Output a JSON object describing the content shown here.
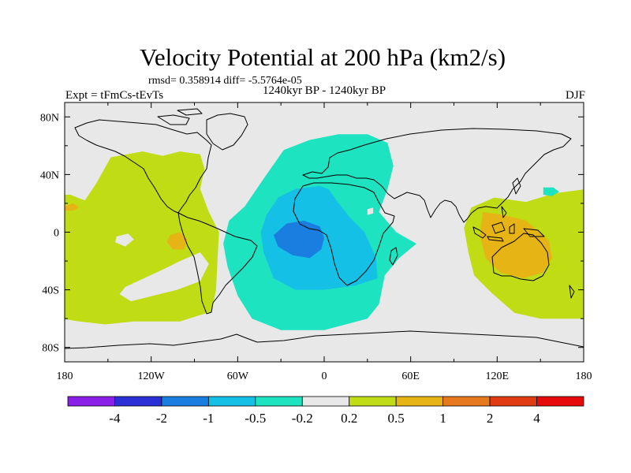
{
  "chart_data": {
    "type": "heatmap",
    "title": "Velocity Potential at 200 hPa (km2/s)",
    "stats_line": "rmsd= 0.358914 diff= -5.5764e-05",
    "period_line": "1240kyr BP - 1240kyr BP",
    "experiment": "Expt = tFmCs-tEvTs",
    "season": "DJF",
    "x_range": [
      -180,
      180
    ],
    "y_range": [
      -90,
      90
    ],
    "x_ticks": [
      {
        "value": -180,
        "label": "180"
      },
      {
        "value": -120,
        "label": "120W"
      },
      {
        "value": -60,
        "label": "60W"
      },
      {
        "value": 0,
        "label": "0"
      },
      {
        "value": 60,
        "label": "60E"
      },
      {
        "value": 120,
        "label": "120E"
      },
      {
        "value": 180,
        "label": "180"
      }
    ],
    "y_ticks": [
      {
        "value": 80,
        "label": "80N"
      },
      {
        "value": 40,
        "label": "40N"
      },
      {
        "value": 0,
        "label": "0"
      },
      {
        "value": -40,
        "label": "40S"
      },
      {
        "value": -80,
        "label": "80S"
      }
    ],
    "colorbar": {
      "labels": [
        "-4",
        "-2",
        "-1",
        "-0.5",
        "-0.2",
        "0.2",
        "0.5",
        "1",
        "2",
        "4"
      ],
      "colors": [
        "#8a1fe8",
        "#2a2fd6",
        "#1a7ee0",
        "#14c0e6",
        "#1ee3c0",
        "#e8e8e8",
        "#c0dc14",
        "#e6b414",
        "#e6781e",
        "#e03c14",
        "#e60a0a"
      ]
    },
    "regions": [
      {
        "name": "pacific-east-positive",
        "level_index": 6,
        "lonlat": [
          [
            -182,
            26
          ],
          [
            -176,
            26
          ],
          [
            -166,
            22
          ],
          [
            -158,
            34
          ],
          [
            -148,
            52
          ],
          [
            -126,
            56
          ],
          [
            -112,
            53
          ],
          [
            -100,
            56
          ],
          [
            -86,
            54
          ],
          [
            -83,
            44
          ],
          [
            -86,
            30
          ],
          [
            -80,
            14
          ],
          [
            -73,
            0
          ],
          [
            -74,
            -20
          ],
          [
            -75,
            -40
          ],
          [
            -78,
            -55
          ],
          [
            -100,
            -62
          ],
          [
            -132,
            -62
          ],
          [
            -152,
            -64
          ],
          [
            -170,
            -62
          ],
          [
            -182,
            -60
          ]
        ]
      },
      {
        "name": "pacific-east-zero-hole",
        "level_index": 5,
        "lonlat": [
          [
            -138,
            -38
          ],
          [
            -125,
            -32
          ],
          [
            -112,
            -26
          ],
          [
            -100,
            -20
          ],
          [
            -86,
            -14
          ],
          [
            -80,
            -22
          ],
          [
            -86,
            -34
          ],
          [
            -102,
            -40
          ],
          [
            -118,
            -44
          ],
          [
            -134,
            -48
          ],
          [
            -142,
            -43
          ]
        ]
      },
      {
        "name": "pacific-east-small-zero",
        "level_index": 5,
        "lonlat": [
          [
            -144,
            -3
          ],
          [
            -136,
            -1
          ],
          [
            -132,
            -5
          ],
          [
            -138,
            -10
          ],
          [
            -145,
            -7
          ]
        ]
      },
      {
        "name": "pacific-east-orange-blob",
        "level_index": 7,
        "lonlat": [
          [
            -107,
            -2
          ],
          [
            -100,
            0
          ],
          [
            -95,
            -5
          ],
          [
            -97,
            -12
          ],
          [
            -105,
            -12
          ],
          [
            -109,
            -7
          ]
        ]
      },
      {
        "name": "pacific-dateline-orange",
        "level_index": 7,
        "lonlat": [
          [
            -180,
            18
          ],
          [
            -174,
            20
          ],
          [
            -170,
            17
          ],
          [
            -174,
            15
          ],
          [
            -180,
            15
          ]
        ]
      },
      {
        "name": "atlantic-outer-negative",
        "level_index": 4,
        "lonlat": [
          [
            -55,
            18
          ],
          [
            -40,
            40
          ],
          [
            -28,
            57
          ],
          [
            -10,
            64
          ],
          [
            10,
            68
          ],
          [
            30,
            68
          ],
          [
            44,
            62
          ],
          [
            48,
            46
          ],
          [
            44,
            30
          ],
          [
            38,
            14
          ],
          [
            50,
            0
          ],
          [
            64,
            -8
          ],
          [
            52,
            -18
          ],
          [
            42,
            -30
          ],
          [
            38,
            -50
          ],
          [
            30,
            -60
          ],
          [
            0,
            -68
          ],
          [
            -30,
            -68
          ],
          [
            -50,
            -60
          ],
          [
            -60,
            -44
          ],
          [
            -67,
            -24
          ],
          [
            -70,
            -8
          ],
          [
            -66,
            8
          ]
        ]
      },
      {
        "name": "atlantic-inner-negative",
        "level_index": 3,
        "lonlat": [
          [
            -40,
            12
          ],
          [
            -32,
            24
          ],
          [
            -20,
            30
          ],
          [
            -3,
            32
          ],
          [
            3,
            30
          ],
          [
            10,
            20
          ],
          [
            18,
            10
          ],
          [
            28,
            0
          ],
          [
            36,
            -18
          ],
          [
            37,
            -32
          ],
          [
            22,
            -37
          ],
          [
            0,
            -40
          ],
          [
            -20,
            -40
          ],
          [
            -35,
            -32
          ],
          [
            -42,
            -14
          ],
          [
            -44,
            0
          ]
        ]
      },
      {
        "name": "atlantic-core-negative",
        "level_index": 2,
        "lonlat": [
          [
            -35,
            -2
          ],
          [
            -26,
            6
          ],
          [
            -14,
            8
          ],
          [
            -3,
            4
          ],
          [
            0,
            -4
          ],
          [
            -2,
            -12
          ],
          [
            -10,
            -18
          ],
          [
            -22,
            -16
          ],
          [
            -32,
            -10
          ]
        ]
      },
      {
        "name": "africa-zero-hole",
        "level_index": 5,
        "lonlat": [
          [
            30,
            16
          ],
          [
            34,
            17
          ],
          [
            34,
            13
          ],
          [
            30,
            12
          ]
        ]
      },
      {
        "name": "west-pacific-positive",
        "level_index": 6,
        "lonlat": [
          [
            182,
            30
          ],
          [
            160,
            27
          ],
          [
            140,
            21
          ],
          [
            118,
            24
          ],
          [
            102,
            17
          ],
          [
            97,
            3
          ],
          [
            100,
            -14
          ],
          [
            104,
            -30
          ],
          [
            116,
            -42
          ],
          [
            132,
            -56
          ],
          [
            150,
            -60
          ],
          [
            170,
            -60
          ],
          [
            182,
            -60
          ]
        ]
      },
      {
        "name": "west-pacific-orange",
        "level_index": 7,
        "lonlat": [
          [
            110,
            14
          ],
          [
            124,
            12
          ],
          [
            140,
            8
          ],
          [
            156,
            -6
          ],
          [
            158,
            -18
          ],
          [
            152,
            -28
          ],
          [
            138,
            -32
          ],
          [
            122,
            -28
          ],
          [
            112,
            -18
          ],
          [
            108,
            -2
          ]
        ]
      },
      {
        "name": "japan-negative-blob",
        "level_index": 4,
        "lonlat": [
          [
            152,
            31
          ],
          [
            159,
            31
          ],
          [
            163,
            28
          ],
          [
            158,
            25
          ],
          [
            152,
            26
          ]
        ]
      }
    ]
  }
}
